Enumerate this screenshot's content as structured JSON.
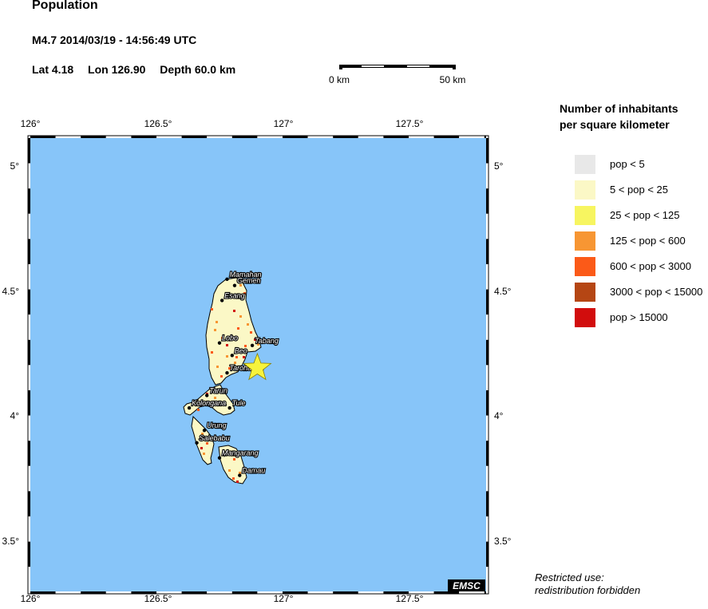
{
  "header": {
    "title": "Population",
    "event": "M4.7  2014/03/19 - 14:56:49 UTC",
    "lat": "Lat  4.18",
    "lon": "Lon 126.90",
    "depth": "Depth  60.0 km"
  },
  "scale_bar": {
    "left_label": "0 km",
    "right_label": "50 km"
  },
  "map": {
    "lon_ticks": [
      "126°",
      "126.5°",
      "127°",
      "127.5°"
    ],
    "lat_ticks": [
      "5°",
      "4.5°",
      "4°",
      "3.5°"
    ],
    "sea_color": "#87c5f9",
    "land_color": "#fbf8c6",
    "epicenter": {
      "lat": 4.18,
      "lon": 126.9,
      "marker": "star-icon",
      "color": "#f7f33c"
    },
    "watermark": "EMSC",
    "cities": [
      {
        "name": "Mamahan",
        "lon": 126.78,
        "lat": 4.535
      },
      {
        "name": "Gemeh",
        "lon": 126.81,
        "lat": 4.51
      },
      {
        "name": "Esang",
        "lon": 126.76,
        "lat": 4.45
      },
      {
        "name": "Lobo",
        "lon": 126.75,
        "lat": 4.28
      },
      {
        "name": "Tabang",
        "lon": 126.88,
        "lat": 4.27
      },
      {
        "name": "Beo",
        "lon": 126.8,
        "lat": 4.23
      },
      {
        "name": "Tarohanan",
        "lon": 126.78,
        "lat": 4.16
      },
      {
        "name": "Tarun",
        "lon": 126.7,
        "lat": 4.07
      },
      {
        "name": "Kolongana",
        "lon": 126.63,
        "lat": 4.02
      },
      {
        "name": "Tule",
        "lon": 126.79,
        "lat": 4.02
      },
      {
        "name": "Urung",
        "lon": 126.69,
        "lat": 3.93
      },
      {
        "name": "Salebabu",
        "lon": 126.66,
        "lat": 3.88
      },
      {
        "name": "Mangarang",
        "lon": 126.75,
        "lat": 3.82
      },
      {
        "name": "Damau",
        "lon": 126.83,
        "lat": 3.75
      }
    ]
  },
  "legend": {
    "title_line1": "Number of inhabitants",
    "title_line2": "per square kilometer",
    "items": [
      {
        "label": "pop < 5",
        "color": "#e8e8e8"
      },
      {
        "label": "5 < pop < 25",
        "color": "#fbf8c6"
      },
      {
        "label": "25 < pop < 125",
        "color": "#f7f560"
      },
      {
        "label": "125 < pop < 600",
        "color": "#f79633"
      },
      {
        "label": "600 < pop < 3000",
        "color": "#fb5a18"
      },
      {
        "label": "3000 < pop < 15000",
        "color": "#b54614"
      },
      {
        "label": "pop > 15000",
        "color": "#d20d0d"
      }
    ]
  },
  "notice": {
    "line1": "Restricted use:",
    "line2": "redistribution forbidden"
  }
}
